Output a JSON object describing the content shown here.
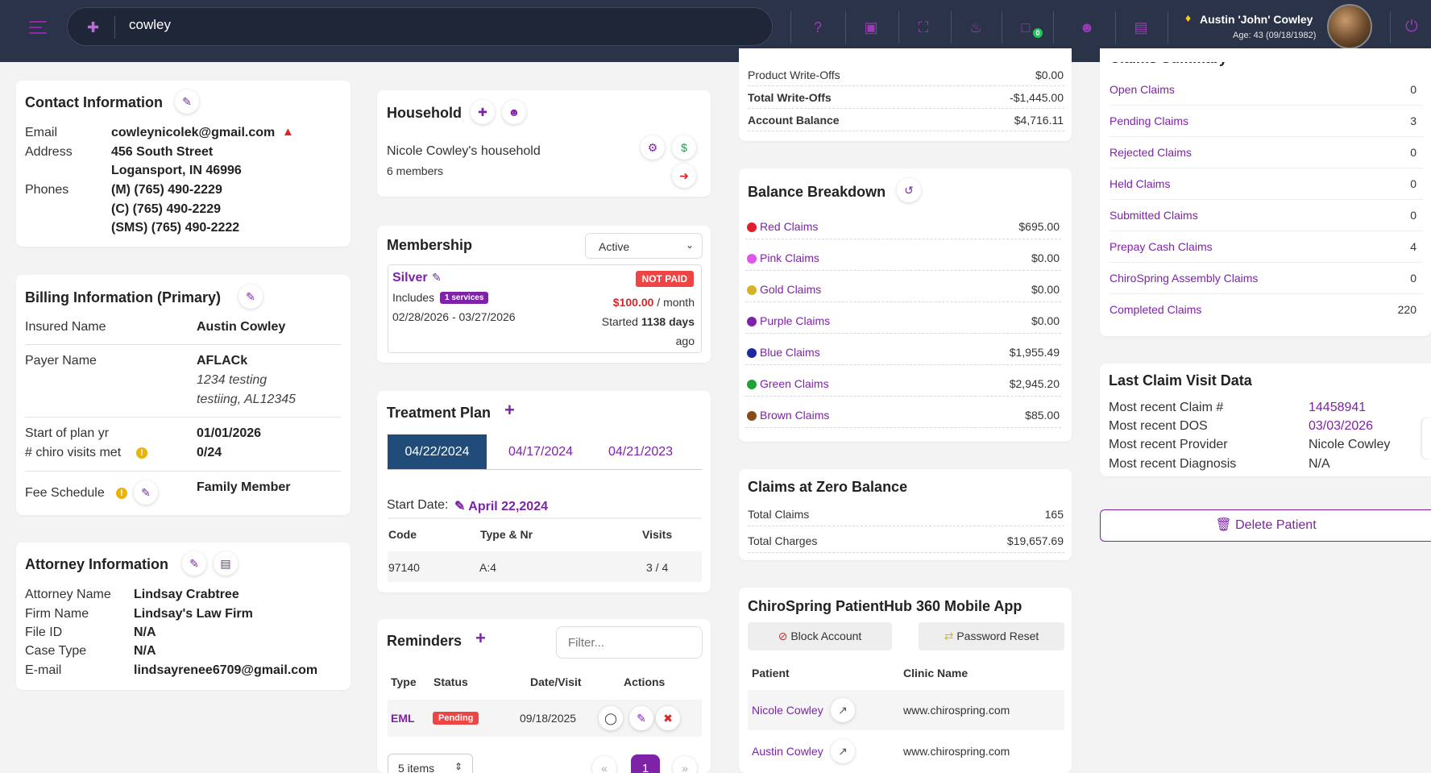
{
  "topbar": {
    "search_value": "cowley",
    "user_name": "Austin 'John' Cowley",
    "user_age": "Age: 43 (09/18/1982)",
    "messages_badge": "0"
  },
  "contact": {
    "title": "Contact Information",
    "email_label": "Email",
    "email": "cowleynicolek@gmail.com",
    "address_label": "Address",
    "address1": "456 South Street",
    "address2": "Logansport, IN 46996",
    "phones_label": "Phones",
    "phone1": "(M) (765) 490-2229",
    "phone2": "(C) (765) 490-2229",
    "phone3": "(SMS) (765) 490-2222"
  },
  "billing": {
    "title": "Billing Information (Primary)",
    "insured_label": "Insured Name",
    "insured": "Austin Cowley",
    "payer_label": "Payer Name",
    "payer": "AFLACk",
    "payer_addr1": "1234 testing",
    "payer_addr2": "testiing, AL12345",
    "plan_start_label": "Start of plan yr",
    "plan_start": "01/01/2026",
    "visits_label": "# chiro visits met",
    "visits": "0/24",
    "fee_label": "Fee Schedule",
    "fee": "Family Member"
  },
  "attorney": {
    "title": "Attorney Information",
    "name_label": "Attorney Name",
    "name": "Lindsay Crabtree",
    "firm_label": "Firm Name",
    "firm": "Lindsay's Law Firm",
    "file_label": "File ID",
    "file": "N/A",
    "case_label": "Case Type",
    "case": "N/A",
    "email_label": "E-mail",
    "email": "lindsayrenee6709@gmail.com"
  },
  "household": {
    "title": "Household",
    "name": "Nicole Cowley's household",
    "members": "6 members"
  },
  "membership": {
    "title": "Membership",
    "status_select": "Active",
    "plan": "Silver",
    "includes_label": "Includes",
    "services_badge": "1 services",
    "dates": "02/28/2026 - 03/27/2026",
    "paid_badge": "NOT PAID",
    "price": "$100.00",
    "price_unit": "/ month",
    "started_prefix": "Started",
    "started_days": "1138 days",
    "started_suffix": "ago"
  },
  "treatment": {
    "title": "Treatment Plan",
    "tabs": [
      "04/22/2024",
      "04/17/2024",
      "04/21/2023"
    ],
    "start_label": "Start Date:",
    "start_value": "April 22,2024",
    "col_code": "Code",
    "col_type": "Type & Nr",
    "col_visits": "Visits",
    "row_code": "97140",
    "row_type": "A:4",
    "row_visits": "3 / 4"
  },
  "reminders": {
    "title": "Reminders",
    "filter_placeholder": "Filter...",
    "col_type": "Type",
    "col_status": "Status",
    "col_date": "Date/Visit",
    "col_actions": "Actions",
    "row_type": "EML",
    "row_status": "Pending",
    "row_date": "09/18/2025",
    "page_size": "5 items",
    "prev": "«",
    "page": "1",
    "next": "»"
  },
  "account": {
    "product_writeoffs_label": "Product Write-Offs",
    "product_writeoffs": "$0.00",
    "total_writeoffs_label": "Total Write-Offs",
    "total_writeoffs": "-$1,445.00",
    "balance_label": "Account Balance",
    "balance": "$4,716.11"
  },
  "balance_breakdown": {
    "title": "Balance Breakdown",
    "items": [
      {
        "label": "Red Claims",
        "value": "$695.00",
        "color": "#e11d2e"
      },
      {
        "label": "Pink Claims",
        "value": "$0.00",
        "color": "#e056e8"
      },
      {
        "label": "Gold Claims",
        "value": "$0.00",
        "color": "#d4b32a"
      },
      {
        "label": "Purple Claims",
        "value": "$0.00",
        "color": "#7e22a8"
      },
      {
        "label": "Blue Claims",
        "value": "$1,955.49",
        "color": "#1e2a9c"
      },
      {
        "label": "Green Claims",
        "value": "$2,945.20",
        "color": "#22a03a"
      },
      {
        "label": "Brown Claims",
        "value": "$85.00",
        "color": "#8a4b1c"
      }
    ]
  },
  "zero_balance": {
    "title": "Claims at Zero Balance",
    "total_claims_label": "Total Claims",
    "total_claims": "165",
    "total_charges_label": "Total Charges",
    "total_charges": "$19,657.69"
  },
  "mobile_app": {
    "title": "ChiroSpring PatientHub 360 Mobile App",
    "block_label": "Block Account",
    "reset_label": "Password Reset",
    "col_patient": "Patient",
    "col_clinic": "Clinic Name",
    "rows": [
      {
        "patient": "Nicole Cowley",
        "clinic": "www.chirospring.com"
      },
      {
        "patient": "Austin Cowley",
        "clinic": "www.chirospring.com"
      }
    ]
  },
  "claims_summary": {
    "title": "Claims Summary",
    "items": [
      {
        "label": "Open Claims",
        "count": "0"
      },
      {
        "label": "Pending Claims",
        "count": "3"
      },
      {
        "label": "Rejected Claims",
        "count": "0"
      },
      {
        "label": "Held Claims",
        "count": "0"
      },
      {
        "label": "Submitted Claims",
        "count": "0"
      },
      {
        "label": "Prepay Cash Claims",
        "count": "4"
      },
      {
        "label": "ChiroSpring Assembly Claims",
        "count": "0"
      },
      {
        "label": "Completed Claims",
        "count": "220"
      }
    ]
  },
  "last_claim": {
    "title": "Last Claim Visit Data",
    "claim_label": "Most recent Claim #",
    "claim": "14458941",
    "dos_label": "Most recent DOS",
    "dos": "03/03/2026",
    "provider_label": "Most recent Provider",
    "provider": "Nicole Cowley",
    "diagnosis_label": "Most recent Diagnosis",
    "diagnosis": "N/A"
  },
  "delete_label": "Delete Patient"
}
